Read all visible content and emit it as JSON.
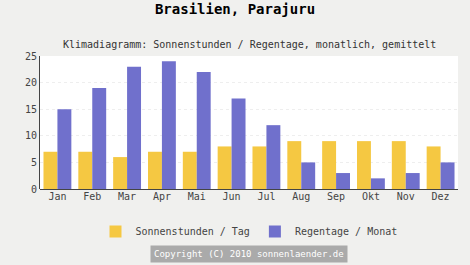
{
  "chart_data": {
    "type": "bar",
    "title": "Brasilien, Parajuru",
    "subtitle": "Klimadiagramm: Sonnenstunden / Regentage, monatlich, gemittelt",
    "categories": [
      "Jan",
      "Feb",
      "Mar",
      "Apr",
      "Mai",
      "Jun",
      "Jul",
      "Aug",
      "Sep",
      "Okt",
      "Nov",
      "Dez"
    ],
    "series": [
      {
        "name": "Sonnenstunden / Tag",
        "color": "#f5c842",
        "values": [
          7,
          7,
          6,
          7,
          7,
          8,
          8,
          9,
          9,
          9,
          9,
          8
        ]
      },
      {
        "name": "Regentage / Monat",
        "color": "#7070cc",
        "values": [
          15,
          19,
          23,
          24,
          22,
          17,
          12,
          5,
          3,
          2,
          3,
          5
        ]
      }
    ],
    "ylim": [
      0,
      25
    ],
    "yticks": [
      0,
      5,
      10,
      15,
      20,
      25
    ],
    "grid": true,
    "legend": "bottom",
    "annotations": [
      "Copyright (C) 2010 sonnenlaender.de"
    ]
  }
}
